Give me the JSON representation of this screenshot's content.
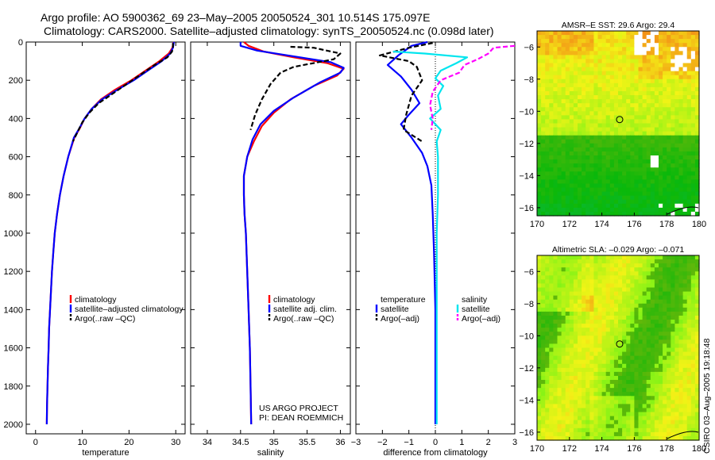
{
  "header": {
    "line1": "Argo profile: AO 5900362_69 23–May–2005 20050524_301 10.514S 175.097E",
    "line2": "Climatology: CARS2000. Satellite–adjusted climatology: synTS_20050524.nc (0.098d later)"
  },
  "colors": {
    "climatology": "#ff0000",
    "satellite": "#0000ff",
    "argo": "#000000",
    "sal_satellite": "#00e5ee",
    "sal_argo": "#ff00ff"
  },
  "chart_data": [
    {
      "id": "temperature",
      "type": "line",
      "xlabel": "temperature",
      "ylabel": "",
      "xlim": [
        -2,
        32
      ],
      "ylim": [
        2050,
        0
      ],
      "xticks": [
        0,
        10,
        20,
        30
      ],
      "yticks": [
        0,
        200,
        400,
        600,
        800,
        1000,
        1200,
        1400,
        1600,
        1800,
        2000
      ],
      "legend": [
        "climatology",
        "satellite–adjusted climatology",
        "Argo(..raw –QC)"
      ],
      "series": [
        {
          "name": "climatology",
          "color": "climatology",
          "dash": "",
          "points": [
            [
              29.5,
              0
            ],
            [
              29.3,
              30
            ],
            [
              28.5,
              60
            ],
            [
              26.5,
              100
            ],
            [
              23.5,
              150
            ],
            [
              20.5,
              200
            ],
            [
              17,
              250
            ],
            [
              14,
              300
            ],
            [
              12,
              350
            ],
            [
              10.5,
              400
            ],
            [
              9.5,
              450
            ],
            [
              8.3,
              500
            ],
            [
              7,
              600
            ],
            [
              6,
              700
            ],
            [
              5.2,
              800
            ],
            [
              4.6,
              900
            ],
            [
              4.1,
              1000
            ],
            [
              3.8,
              1100
            ],
            [
              3.5,
              1200
            ],
            [
              3.3,
              1300
            ],
            [
              3.1,
              1400
            ],
            [
              2.9,
              1500
            ],
            [
              2.8,
              1600
            ],
            [
              2.65,
              1700
            ],
            [
              2.55,
              1800
            ],
            [
              2.45,
              1900
            ],
            [
              2.4,
              2000
            ]
          ]
        },
        {
          "name": "satellite–adjusted climatology",
          "color": "satellite",
          "dash": "",
          "points": [
            [
              29.6,
              0
            ],
            [
              29.4,
              30
            ],
            [
              28.8,
              60
            ],
            [
              27,
              100
            ],
            [
              24,
              150
            ],
            [
              21,
              200
            ],
            [
              17.5,
              250
            ],
            [
              14.2,
              300
            ],
            [
              12,
              350
            ],
            [
              10.5,
              400
            ],
            [
              9.4,
              450
            ],
            [
              8.2,
              500
            ],
            [
              7,
              600
            ],
            [
              6,
              700
            ],
            [
              5.2,
              800
            ],
            [
              4.6,
              900
            ],
            [
              4.1,
              1000
            ],
            [
              3.8,
              1100
            ],
            [
              3.5,
              1200
            ],
            [
              3.3,
              1300
            ],
            [
              3.1,
              1400
            ],
            [
              2.9,
              1500
            ],
            [
              2.8,
              1600
            ],
            [
              2.65,
              1700
            ],
            [
              2.55,
              1800
            ],
            [
              2.45,
              1900
            ],
            [
              2.4,
              2000
            ]
          ]
        },
        {
          "name": "Argo(..raw –QC)",
          "color": "argo",
          "dash": "6,3",
          "points": [
            [
              29.4,
              5
            ],
            [
              29.4,
              30
            ],
            [
              29.2,
              50
            ],
            [
              28.2,
              80
            ],
            [
              25.5,
              120
            ],
            [
              22.5,
              170
            ],
            [
              19.5,
              220
            ],
            [
              16.5,
              270
            ],
            [
              13.5,
              320
            ],
            [
              11.5,
              370
            ],
            [
              10,
              420
            ],
            [
              9,
              470
            ],
            [
              8,
              520
            ]
          ]
        }
      ]
    },
    {
      "id": "salinity",
      "type": "line",
      "xlabel": "salinity",
      "xlim": [
        33.75,
        36.15
      ],
      "ylim": [
        2050,
        0
      ],
      "xticks": [
        34,
        34.5,
        35,
        35.5,
        36
      ],
      "legend": [
        "climatology",
        "satellite adj. clim.",
        "Argo(..raw –QC)"
      ],
      "annotations": [
        "US ARGO PROJECT",
        "PI: DEAN ROEMMICH"
      ],
      "series": [
        {
          "name": "climatology",
          "color": "climatology",
          "dash": "",
          "points": [
            [
              34.55,
              0
            ],
            [
              34.62,
              20
            ],
            [
              34.85,
              50
            ],
            [
              35.3,
              80
            ],
            [
              35.8,
              110
            ],
            [
              36.05,
              140
            ],
            [
              35.95,
              175
            ],
            [
              35.6,
              230
            ],
            [
              35.25,
              300
            ],
            [
              35,
              370
            ],
            [
              34.82,
              440
            ],
            [
              34.7,
              520
            ],
            [
              34.6,
              600
            ],
            [
              34.55,
              700
            ],
            [
              34.55,
              800
            ],
            [
              34.56,
              900
            ],
            [
              34.58,
              1000
            ],
            [
              34.6,
              1200
            ],
            [
              34.62,
              1400
            ],
            [
              34.64,
              1600
            ],
            [
              34.65,
              1800
            ],
            [
              34.66,
              2000
            ]
          ]
        },
        {
          "name": "satellite adj. clim.",
          "color": "satellite",
          "dash": "",
          "points": [
            [
              34.5,
              0
            ],
            [
              34.5,
              20
            ],
            [
              34.75,
              45
            ],
            [
              35.3,
              75
            ],
            [
              35.85,
              105
            ],
            [
              36.05,
              135
            ],
            [
              36.0,
              160
            ],
            [
              35.7,
              210
            ],
            [
              35.3,
              290
            ],
            [
              35.0,
              360
            ],
            [
              34.8,
              430
            ],
            [
              34.68,
              510
            ],
            [
              34.6,
              600
            ],
            [
              34.55,
              700
            ],
            [
              34.55,
              800
            ],
            [
              34.56,
              900
            ],
            [
              34.58,
              1000
            ],
            [
              34.6,
              1200
            ],
            [
              34.62,
              1400
            ],
            [
              34.64,
              1600
            ],
            [
              34.65,
              1800
            ],
            [
              34.66,
              2000
            ]
          ]
        },
        {
          "name": "Argo(..raw –QC)",
          "color": "argo",
          "dash": "6,3",
          "points": [
            [
              35.25,
              25
            ],
            [
              35.6,
              30
            ],
            [
              36.0,
              60
            ],
            [
              35.9,
              90
            ],
            [
              35.3,
              130
            ],
            [
              35.1,
              160
            ],
            [
              34.95,
              220
            ],
            [
              34.82,
              300
            ],
            [
              34.72,
              380
            ],
            [
              34.65,
              460
            ]
          ]
        }
      ]
    },
    {
      "id": "difference",
      "type": "line",
      "xlabel": "difference from climatology",
      "xlim": [
        -3,
        3
      ],
      "ylim": [
        2050,
        0
      ],
      "xticks": [
        -3,
        -2,
        -1,
        0,
        1,
        2,
        3
      ],
      "legend_left": [
        "temperature",
        "satellite",
        "Argo(–adj)"
      ],
      "legend_right": [
        "salinity",
        "satellite",
        "Argo(–adj)"
      ],
      "series": [
        {
          "name": "temperature satellite",
          "color": "satellite",
          "dash": "",
          "points": [
            [
              -0.3,
              0
            ],
            [
              -0.9,
              20
            ],
            [
              -1.4,
              70
            ],
            [
              -1.8,
              120
            ],
            [
              -1.3,
              180
            ],
            [
              -0.9,
              250
            ],
            [
              -0.6,
              320
            ],
            [
              -1.0,
              380
            ],
            [
              -1.3,
              430
            ],
            [
              -0.9,
              500
            ],
            [
              -0.5,
              580
            ],
            [
              -0.3,
              650
            ],
            [
              -0.15,
              750
            ],
            [
              -0.1,
              900
            ],
            [
              -0.05,
              1100
            ],
            [
              0,
              1400
            ],
            [
              0,
              2000
            ]
          ]
        },
        {
          "name": "temperature Argo(–adj)",
          "color": "argo",
          "dash": "6,3",
          "points": [
            [
              -0.1,
              5
            ],
            [
              -1.0,
              30
            ],
            [
              -2.1,
              70
            ],
            [
              -1.0,
              100
            ],
            [
              -0.7,
              130
            ],
            [
              -0.5,
              200
            ],
            [
              -0.9,
              280
            ],
            [
              -1.1,
              380
            ],
            [
              -1.2,
              460
            ],
            [
              -0.5,
              520
            ]
          ]
        },
        {
          "name": "salinity satellite",
          "color": "sal_satellite",
          "dash": "",
          "points": [
            [
              -1.6,
              50
            ],
            [
              -0.4,
              60
            ],
            [
              1.2,
              80
            ],
            [
              0.8,
              110
            ],
            [
              0.2,
              150
            ],
            [
              0.0,
              190
            ],
            [
              0.3,
              230
            ],
            [
              0.1,
              280
            ],
            [
              0.2,
              350
            ],
            [
              -0.2,
              400
            ],
            [
              0.2,
              460
            ],
            [
              0.05,
              520
            ],
            [
              0.1,
              600
            ],
            [
              0.1,
              800
            ],
            [
              0.05,
              1000
            ],
            [
              0.05,
              1400
            ],
            [
              0.05,
              1800
            ],
            [
              0.05,
              2000
            ]
          ]
        },
        {
          "name": "salinity Argo(–adj)",
          "color": "sal_argo",
          "dash": "6,3",
          "points": [
            [
              3.0,
              20
            ],
            [
              2.2,
              30
            ],
            [
              2.0,
              60
            ],
            [
              1.6,
              90
            ],
            [
              1.1,
              120
            ],
            [
              0.9,
              160
            ],
            [
              0.2,
              200
            ],
            [
              -0.1,
              260
            ],
            [
              -0.2,
              330
            ],
            [
              -0.1,
              400
            ],
            [
              -0.15,
              460
            ]
          ]
        }
      ]
    },
    {
      "id": "sst-map",
      "type": "heatmap",
      "title": "AMSR–E SST: 29.6 Argo: 29.4",
      "xlim": [
        170,
        180
      ],
      "ylim": [
        -16.5,
        -5
      ],
      "xticks": [
        170,
        172,
        174,
        176,
        178,
        180
      ],
      "yticks": [
        -6,
        -8,
        -10,
        -12,
        -14,
        -16
      ],
      "marker": [
        175.097,
        -10.514
      ]
    },
    {
      "id": "sla-map",
      "type": "heatmap",
      "title": "Altimetric SLA: –0.029 Argo: –0.071",
      "xlim": [
        170,
        180
      ],
      "ylim": [
        -16.5,
        -5
      ],
      "xticks": [
        170,
        172,
        174,
        176,
        178,
        180
      ],
      "yticks": [
        -6,
        -8,
        -10,
        -12,
        -14,
        -16
      ],
      "marker": [
        175.097,
        -10.514
      ]
    }
  ],
  "footer": {
    "stamp": "CSIRO 03–Aug–2005 19:18:48"
  }
}
